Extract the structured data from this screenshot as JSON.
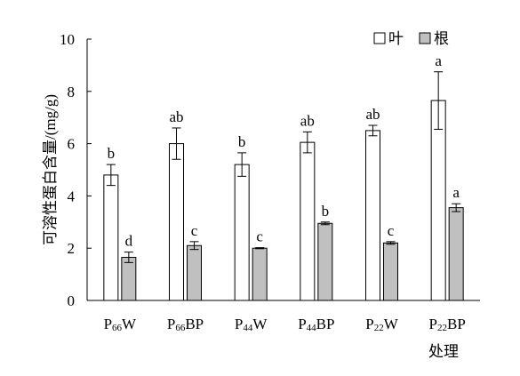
{
  "chart_data": {
    "type": "bar",
    "ylabel": "可溶性蛋白含量/(mg/g)",
    "xlabel": "处理",
    "ylim": [
      0,
      10
    ],
    "yticks": [
      0,
      2,
      4,
      6,
      8,
      10
    ],
    "grid": false,
    "legend_position": "top-right",
    "categories": [
      {
        "prefix": "P",
        "sub": "66",
        "suffix": "W"
      },
      {
        "prefix": "P",
        "sub": "66",
        "suffix": "BP"
      },
      {
        "prefix": "P",
        "sub": "44",
        "suffix": "W"
      },
      {
        "prefix": "P",
        "sub": "44",
        "suffix": "BP"
      },
      {
        "prefix": "P",
        "sub": "22",
        "suffix": "W"
      },
      {
        "prefix": "P",
        "sub": "22",
        "suffix": "BP"
      }
    ],
    "series": [
      {
        "name": "叶",
        "color": "#ffffff",
        "values": [
          4.8,
          6.0,
          5.2,
          6.05,
          6.5,
          7.65
        ],
        "errors": [
          0.4,
          0.6,
          0.45,
          0.4,
          0.2,
          1.1
        ],
        "letters": [
          "b",
          "ab",
          "b",
          "ab",
          "ab",
          "a"
        ]
      },
      {
        "name": "根",
        "color": "#c0c0c0",
        "values": [
          1.65,
          2.1,
          2.0,
          2.95,
          2.2,
          3.55
        ],
        "errors": [
          0.2,
          0.15,
          0.02,
          0.05,
          0.05,
          0.15
        ],
        "letters": [
          "d",
          "c",
          "c",
          "b",
          "c",
          "a"
        ]
      }
    ]
  }
}
